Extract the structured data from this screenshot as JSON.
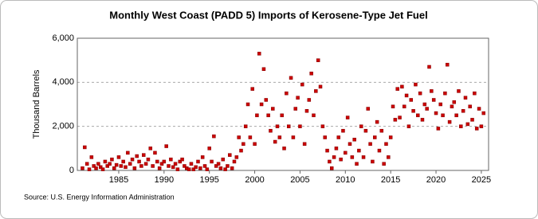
{
  "chart_data": {
    "type": "scatter",
    "title": "Monthly West Coast (PADD 5) Imports of Kerosene-Type Jet Fuel",
    "y_label": "Thousand Barrels",
    "source": "Source: U.S. Energy Information Administration",
    "color": "#cc0000",
    "grid": true,
    "xlim": [
      1980.43,
      2025.8
    ],
    "xticks": [
      1985,
      1990,
      1995,
      2000,
      2005,
      2010,
      2015,
      2020,
      2025
    ],
    "ylim": [
      0,
      6000
    ],
    "yticks": [
      0,
      {
        "value": 2000,
        "label": "2,000"
      },
      {
        "value": 4000,
        "label": "4,000"
      },
      {
        "value": 6000,
        "label": "6,000"
      }
    ],
    "x": [
      1981,
      1981.25,
      1981.5,
      1981.75,
      1982,
      1982.25,
      1982.5,
      1982.75,
      1983,
      1983.25,
      1983.5,
      1983.75,
      1984,
      1984.25,
      1984.5,
      1984.75,
      1985,
      1985.25,
      1985.5,
      1985.75,
      1986,
      1986.25,
      1986.5,
      1986.75,
      1987,
      1987.25,
      1987.5,
      1987.75,
      1988,
      1988.25,
      1988.5,
      1988.75,
      1989,
      1989.25,
      1989.5,
      1989.75,
      1990,
      1990.25,
      1990.5,
      1990.75,
      1991,
      1991.25,
      1991.5,
      1991.75,
      1992,
      1992.25,
      1992.5,
      1992.75,
      1993,
      1993.25,
      1993.5,
      1993.75,
      1994,
      1994.25,
      1994.5,
      1994.75,
      1995,
      1995.25,
      1995.5,
      1995.75,
      1996,
      1996.25,
      1996.5,
      1996.75,
      1997,
      1997.25,
      1997.5,
      1997.75,
      1998,
      1998.25,
      1998.5,
      1998.75,
      1999,
      1999.25,
      1999.5,
      1999.75,
      2000,
      2000.25,
      2000.5,
      2000.75,
      2001,
      2001.25,
      2001.5,
      2001.75,
      2002,
      2002.25,
      2002.5,
      2002.75,
      2003,
      2003.25,
      2003.5,
      2003.75,
      2004,
      2004.25,
      2004.5,
      2004.75,
      2005,
      2005.25,
      2005.5,
      2005.75,
      2006,
      2006.25,
      2006.5,
      2006.75,
      2007,
      2007.25,
      2007.5,
      2007.75,
      2008,
      2008.25,
      2008.5,
      2008.75,
      2009,
      2009.25,
      2009.5,
      2009.75,
      2010,
      2010.25,
      2010.5,
      2010.75,
      2011,
      2011.25,
      2011.5,
      2011.75,
      2012,
      2012.25,
      2012.5,
      2012.75,
      2013,
      2013.25,
      2013.5,
      2013.75,
      2014,
      2014.25,
      2014.5,
      2014.75,
      2015,
      2015.25,
      2015.5,
      2015.75,
      2016,
      2016.25,
      2016.5,
      2016.75,
      2017,
      2017.25,
      2017.5,
      2017.75,
      2018,
      2018.25,
      2018.5,
      2018.75,
      2019,
      2019.25,
      2019.5,
      2019.75,
      2020,
      2020.25,
      2020.5,
      2020.75,
      2021,
      2021.25,
      2021.5,
      2021.75,
      2022,
      2022.25,
      2022.5,
      2022.75,
      2023,
      2023.25,
      2023.5,
      2023.75,
      2024,
      2024.25,
      2024.5,
      2024.75,
      2025,
      2025.25
    ],
    "values": [
      100,
      1050,
      300,
      50,
      600,
      200,
      100,
      300,
      150,
      50,
      400,
      200,
      300,
      500,
      100,
      250,
      600,
      200,
      400,
      150,
      800,
      300,
      500,
      100,
      650,
      400,
      200,
      700,
      300,
      500,
      1000,
      200,
      800,
      400,
      100,
      300,
      400,
      1100,
      200,
      500,
      150,
      300,
      50,
      400,
      500,
      200,
      100,
      50,
      300,
      50,
      150,
      400,
      100,
      600,
      200,
      50,
      1000,
      400,
      1550,
      200,
      300,
      100,
      500,
      50,
      200,
      700,
      100,
      400,
      600,
      1500,
      900,
      1200,
      2000,
      3000,
      1500,
      3700,
      1200,
      2500,
      5300,
      3000,
      4600,
      3200,
      2500,
      1800,
      2800,
      1300,
      2000,
      1500,
      2500,
      1000,
      3500,
      2000,
      4200,
      1500,
      2800,
      3300,
      2000,
      3900,
      1200,
      2700,
      3200,
      4400,
      2500,
      3600,
      5000,
      3800,
      2000,
      1500,
      900,
      400,
      100,
      600,
      1000,
      1500,
      500,
      1800,
      800,
      2400,
      1200,
      600,
      1400,
      300,
      900,
      2000,
      600,
      1800,
      2800,
      1200,
      400,
      1500,
      2200,
      900,
      1800,
      300,
      1200,
      600,
      1500,
      2900,
      2300,
      3700,
      2400,
      3800,
      2900,
      3400,
      2000,
      3200,
      2700,
      3900,
      2500,
      3500,
      2300,
      3000,
      2800,
      4700,
      3600,
      3200,
      2600,
      1900,
      3000,
      2500,
      3500,
      4800,
      2200,
      2900,
      3100,
      2500,
      3600,
      2000,
      2700,
      3300,
      2100,
      2900,
      2300,
      3500,
      1900,
      2800,
      2000,
      2600
    ]
  }
}
